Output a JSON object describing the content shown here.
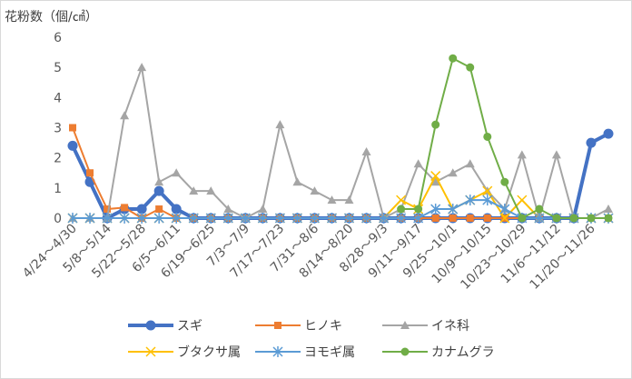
{
  "chart_data": {
    "type": "line",
    "title": "",
    "ylabel": "花粉数（個/㎠）",
    "xlabel": "",
    "ylim": [
      0,
      6
    ],
    "yticks": [
      0,
      1,
      2,
      3,
      4,
      5,
      6
    ],
    "grid": false,
    "legend_position": "bottom",
    "categories": [
      "4/24～4/30",
      "5/1～5/7",
      "5/8～5/14",
      "5/15～5/21",
      "5/22～5/28",
      "5/29～6/4",
      "6/5～6/11",
      "6/12～6/18",
      "6/19～6/25",
      "6/26～7/2",
      "7/3～7/9",
      "7/10～7/16",
      "7/17～7/23",
      "7/24～7/30",
      "7/31～8/6",
      "8/7～8/13",
      "8/14～8/20",
      "8/21～8/27",
      "8/28～9/3",
      "9/4～9/10",
      "9/11～9/17",
      "9/18～9/24",
      "9/25～10/1",
      "10/2～10/8",
      "10/9～10/15",
      "10/16～10/22",
      "10/23～10/29",
      "10/30～11/5",
      "11/6～11/12",
      "11/13～11/19",
      "11/20～11/26",
      "11/27～12/3"
    ],
    "visible_tick_indices": [
      0,
      2,
      4,
      6,
      8,
      10,
      12,
      14,
      16,
      18,
      20,
      22,
      24,
      26,
      28,
      30
    ],
    "series": [
      {
        "name": "スギ",
        "color": "#4472C4",
        "marker": "circle",
        "width": 4,
        "values": [
          2.4,
          1.2,
          0.0,
          0.3,
          0.3,
          0.9,
          0.3,
          0.0,
          0.0,
          0.0,
          0.0,
          0.0,
          0.0,
          0.0,
          0.0,
          0.0,
          0.0,
          0.0,
          0.0,
          0.0,
          0.0,
          0.0,
          0.0,
          0.0,
          0.0,
          0.0,
          0.0,
          0.0,
          0.0,
          0.0,
          2.5,
          2.8
        ]
      },
      {
        "name": "ヒノキ",
        "color": "#ED7D31",
        "marker": "square",
        "width": 2,
        "values": [
          3.0,
          1.5,
          0.3,
          0.35,
          0.0,
          0.3,
          0.0,
          0.0,
          0.0,
          0.0,
          0.0,
          0.0,
          0.0,
          0.0,
          0.0,
          0.0,
          0.0,
          0.0,
          0.0,
          0.0,
          0.0,
          0.0,
          0.0,
          0.0,
          0.0,
          0.0,
          0.0,
          0.0,
          0.0,
          0.0,
          0.0,
          0.0
        ]
      },
      {
        "name": "イネ科",
        "color": "#A5A5A5",
        "marker": "triangle",
        "width": 2,
        "values": [
          0.0,
          0.0,
          0.0,
          3.4,
          5.0,
          1.2,
          1.5,
          0.9,
          0.9,
          0.3,
          0.0,
          0.3,
          3.1,
          1.2,
          0.9,
          0.6,
          0.6,
          2.2,
          0.0,
          0.3,
          1.8,
          1.2,
          1.5,
          1.8,
          0.9,
          0.3,
          2.1,
          0.0,
          2.1,
          0.0,
          0.0,
          0.3
        ]
      },
      {
        "name": "ブタクサ属",
        "color": "#FFC000",
        "marker": "x",
        "width": 2,
        "values": [
          0.0,
          0.0,
          0.0,
          0.0,
          0.0,
          0.0,
          0.0,
          0.0,
          0.0,
          0.0,
          0.0,
          0.0,
          0.0,
          0.0,
          0.0,
          0.0,
          0.0,
          0.0,
          0.0,
          0.6,
          0.3,
          1.4,
          0.3,
          0.6,
          0.9,
          0.0,
          0.6,
          0.0,
          0.0,
          0.0,
          0.0,
          0.0
        ]
      },
      {
        "name": "ヨモギ属",
        "color": "#5B9BD5",
        "marker": "star",
        "width": 2,
        "values": [
          0.0,
          0.0,
          0.0,
          0.0,
          0.0,
          0.0,
          0.0,
          0.0,
          0.0,
          0.0,
          0.0,
          0.0,
          0.0,
          0.0,
          0.0,
          0.0,
          0.0,
          0.0,
          0.0,
          0.0,
          0.0,
          0.3,
          0.3,
          0.6,
          0.6,
          0.3,
          0.0,
          0.0,
          0.0,
          0.0,
          0.0,
          0.0
        ]
      },
      {
        "name": "カナムグラ",
        "color": "#70AD47",
        "marker": "circle",
        "width": 2,
        "values": [
          null,
          null,
          null,
          null,
          null,
          null,
          null,
          null,
          null,
          null,
          null,
          null,
          null,
          null,
          null,
          null,
          null,
          null,
          null,
          0.3,
          0.3,
          3.1,
          5.3,
          5.0,
          2.7,
          1.2,
          0.0,
          0.3,
          0.0,
          0.0,
          0.0,
          0.0
        ]
      }
    ]
  }
}
